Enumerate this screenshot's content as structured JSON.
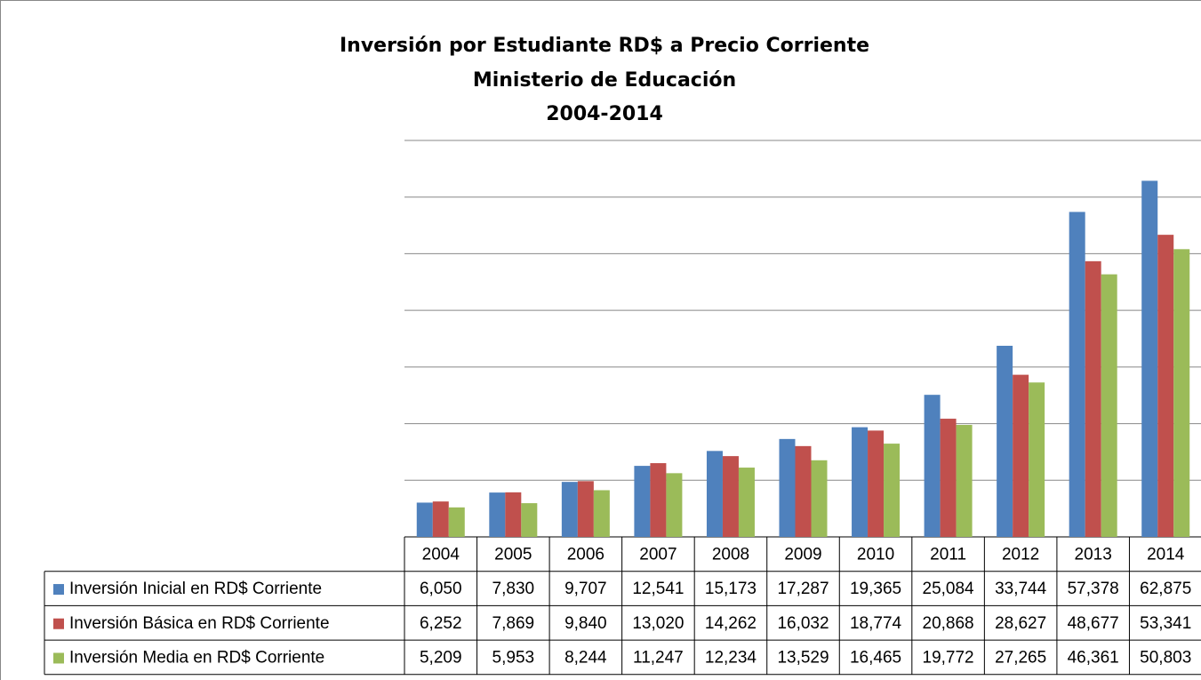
{
  "chart_data": {
    "type": "bar",
    "title": [
      "Inversión por Estudiante RD$ a Precio Corriente",
      "Ministerio de Educación",
      "2004-2014"
    ],
    "categories": [
      "2004",
      "2005",
      "2006",
      "2007",
      "2008",
      "2009",
      "2010",
      "2011",
      "2012",
      "2013",
      "2014"
    ],
    "series": [
      {
        "name": "Inversión Inicial en RD$ Corriente",
        "color": "#4f81bd",
        "values": [
          6050,
          7830,
          9707,
          12541,
          15173,
          17287,
          19365,
          25084,
          33744,
          57378,
          62875
        ],
        "value_labels": [
          "6,050",
          "7,830",
          "9,707",
          "12,541",
          "15,173",
          "17,287",
          "19,365",
          "25,084",
          "33,744",
          "57,378",
          "62,875"
        ]
      },
      {
        "name": "Inversión Básica en RD$ Corriente",
        "color": "#c0504d",
        "values": [
          6252,
          7869,
          9840,
          13020,
          14262,
          16032,
          18774,
          20868,
          28627,
          48677,
          53341
        ],
        "value_labels": [
          "6,252",
          "7,869",
          "9,840",
          "13,020",
          "14,262",
          "16,032",
          "18,774",
          "20,868",
          "28,627",
          "48,677",
          "53,341"
        ]
      },
      {
        "name": "Inversión Media en RD$ Corriente",
        "color": "#9bbb59",
        "values": [
          5209,
          5953,
          8244,
          11247,
          12234,
          13529,
          16465,
          19772,
          27265,
          46361,
          50803
        ],
        "value_labels": [
          "5,209",
          "5,953",
          "8,244",
          "11,247",
          "12,234",
          "13,529",
          "16,465",
          "19,772",
          "27,265",
          "46,361",
          "50,803"
        ]
      }
    ],
    "ylim": [
      0,
      70000
    ],
    "yticks": [
      0,
      10000,
      20000,
      30000,
      40000,
      50000,
      60000,
      70000
    ],
    "grid": true
  }
}
